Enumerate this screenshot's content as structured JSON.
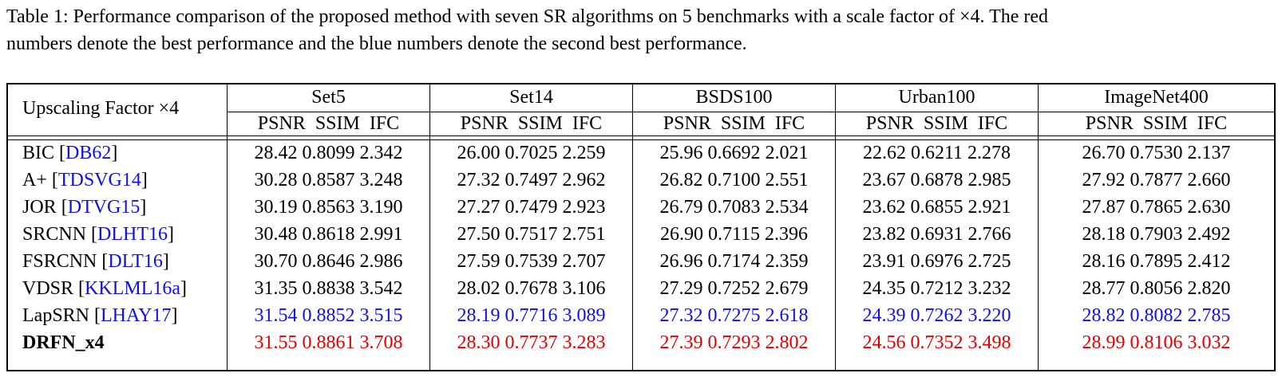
{
  "caption": {
    "line1": "Table 1: Performance comparison of the proposed method with seven SR algorithms on 5 benchmarks with a scale factor of ×4. The red",
    "line2": "numbers denote the best performance and the blue numbers denote the second best performance."
  },
  "header": {
    "row_label": "Upscaling Factor ×4",
    "datasets": [
      "Set5",
      "Set14",
      "BSDS100",
      "Urban100",
      "ImageNet400"
    ],
    "metrics": "PSNR  SSIM  IFC"
  },
  "colors": {
    "best": "#e00000",
    "second": "#1010e0",
    "default": "#000000"
  },
  "rows": [
    {
      "name": "BIC",
      "cite": "DB62",
      "vals": [
        "28.42 0.8099 2.342",
        "26.00 0.7025 2.259",
        "25.96 0.6692 2.021",
        "22.62 0.6211 2.278",
        "26.70 0.7530 2.137"
      ],
      "rank": "none"
    },
    {
      "name": "A+",
      "cite": "TDSVG14",
      "vals": [
        "30.28 0.8587 3.248",
        "27.32 0.7497 2.962",
        "26.82 0.7100 2.551",
        "23.67 0.6878 2.985",
        "27.92 0.7877 2.660"
      ],
      "rank": "none"
    },
    {
      "name": "JOR",
      "cite": "DTVG15",
      "vals": [
        "30.19 0.8563 3.190",
        "27.27 0.7479 2.923",
        "26.79 0.7083 2.534",
        "23.62 0.6855 2.921",
        "27.87 0.7865 2.630"
      ],
      "rank": "none"
    },
    {
      "name": "SRCNN",
      "cite": "DLHT16",
      "vals": [
        "30.48 0.8618 2.991",
        "27.50 0.7517 2.751",
        "26.90 0.7115 2.396",
        "23.82 0.6931 2.766",
        "28.18 0.7903 2.492"
      ],
      "rank": "none"
    },
    {
      "name": "FSRCNN",
      "cite": "DLT16",
      "vals": [
        "30.70 0.8646 2.986",
        "27.59 0.7539 2.707",
        "26.96 0.7174 2.359",
        "23.91 0.6976 2.725",
        "28.16 0.7895 2.412"
      ],
      "rank": "none"
    },
    {
      "name": "VDSR",
      "cite": "KKLML16a",
      "vals": [
        "31.35 0.8838 3.542",
        "28.02 0.7678 3.106",
        "27.29 0.7252 2.679",
        "24.35 0.7212 3.232",
        "28.77 0.8056 2.820"
      ],
      "rank": "none"
    },
    {
      "name": "LapSRN",
      "cite": "LHAY17",
      "vals": [
        "31.54 0.8852 3.515",
        "28.19 0.7716 3.089",
        "27.32 0.7275 2.618",
        "24.39 0.7262 3.220",
        "28.82 0.8082 2.785"
      ],
      "rank": "second"
    },
    {
      "name": "DRFN_x4",
      "cite": "",
      "vals": [
        "31.55 0.8861 3.708",
        "28.30 0.7737 3.283",
        "27.39 0.7293 2.802",
        "24.56 0.7352 3.498",
        "28.99 0.8106 3.032"
      ],
      "rank": "best"
    }
  ]
}
